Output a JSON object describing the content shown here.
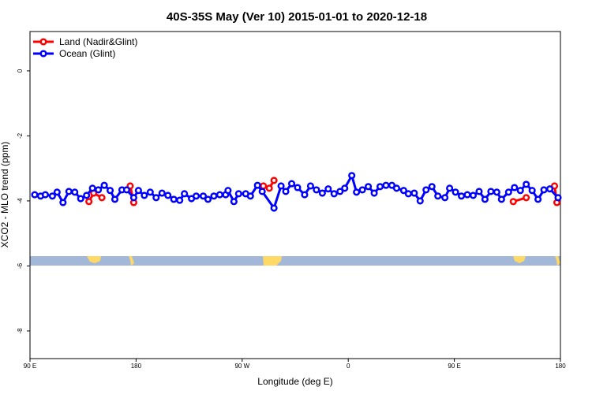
{
  "chart_data": {
    "type": "line",
    "title": "40S-35S May (Ver 10)   2015-01-01 to 2020-12-18",
    "x_label": "Longitude (deg E)",
    "y_label": "XCO2 - MLO trend (ppm)",
    "xlim": [
      90,
      540
    ],
    "ylim": [
      -8.85,
      1.21
    ],
    "xticks": [
      {
        "value": 90,
        "label": "90 E"
      },
      180,
      {
        "value": 270,
        "label": "90 W"
      },
      {
        "value": 360,
        "label": "0"
      },
      {
        "value": 450,
        "label": "90 E"
      },
      {
        "value": 540,
        "label": "180"
      }
    ],
    "yticks": [
      0,
      -2,
      -4,
      -6,
      -8
    ],
    "legend": "top-left",
    "series": [
      {
        "name": "Land (Nadir&Glint)",
        "color": "#ff0000",
        "x": [
          140,
          144,
          151,
          175,
          178,
          288,
          293,
          297,
          500,
          511,
          535,
          537
        ],
        "values": [
          -4.02,
          -3.76,
          -3.9,
          -3.54,
          -4.05,
          -3.54,
          -3.61,
          -3.37,
          -4.02,
          -3.9,
          -3.54,
          -4.05
        ]
      },
      {
        "name": "Ocean (Glint)",
        "color": "#0000ff",
        "x": [
          94,
          99,
          103,
          109,
          113,
          118,
          123,
          128,
          133,
          138,
          143,
          148,
          153,
          158,
          162,
          168,
          172,
          178,
          182,
          187,
          192,
          197,
          202,
          207,
          212,
          217,
          221,
          227,
          231,
          237,
          241,
          246,
          251,
          256,
          258,
          263,
          267,
          273,
          277,
          283,
          287,
          297,
          303,
          307,
          312,
          317,
          323,
          328,
          333,
          338,
          343,
          348,
          353,
          357,
          363,
          367,
          372,
          377,
          382,
          387,
          392,
          397,
          401,
          407,
          411,
          416,
          421,
          426,
          431,
          436,
          442,
          446,
          451,
          456,
          461,
          466,
          471,
          476,
          481,
          486,
          490,
          496,
          501,
          506,
          511,
          516,
          521,
          526,
          531,
          538
        ],
        "values": [
          -3.81,
          -3.85,
          -3.81,
          -3.85,
          -3.73,
          -4.05,
          -3.71,
          -3.73,
          -3.93,
          -3.83,
          -3.61,
          -3.66,
          -3.52,
          -3.68,
          -3.95,
          -3.66,
          -3.66,
          -3.9,
          -3.68,
          -3.83,
          -3.73,
          -3.9,
          -3.76,
          -3.83,
          -3.95,
          -3.98,
          -3.78,
          -3.93,
          -3.85,
          -3.85,
          -3.95,
          -3.85,
          -3.81,
          -3.81,
          -3.68,
          -4.02,
          -3.78,
          -3.78,
          -3.85,
          -3.52,
          -3.71,
          -4.22,
          -3.54,
          -3.71,
          -3.47,
          -3.59,
          -3.81,
          -3.54,
          -3.66,
          -3.76,
          -3.63,
          -3.78,
          -3.71,
          -3.61,
          -3.22,
          -3.73,
          -3.66,
          -3.56,
          -3.76,
          -3.56,
          -3.52,
          -3.52,
          -3.61,
          -3.68,
          -3.78,
          -3.76,
          -4.0,
          -3.66,
          -3.56,
          -3.85,
          -3.9,
          -3.61,
          -3.73,
          -3.85,
          -3.81,
          -3.83,
          -3.71,
          -3.95,
          -3.71,
          -3.73,
          -3.95,
          -3.73,
          -3.59,
          -3.68,
          -3.49,
          -3.68,
          -3.95,
          -3.66,
          -3.63,
          -3.9
        ]
      }
    ]
  }
}
